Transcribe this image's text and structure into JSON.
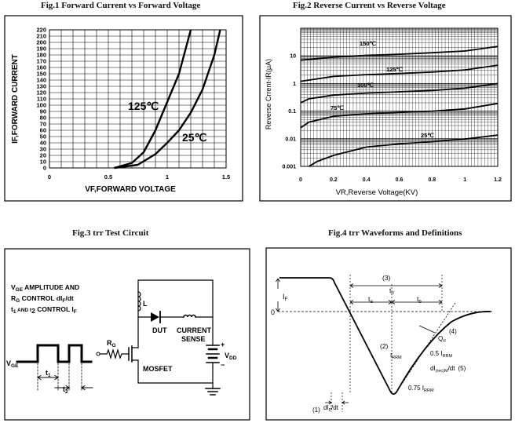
{
  "titles": {
    "fig1": "Fig.1  Forward Current vs Forward Voltage",
    "fig2": "Fig.2  Reverse Current vs Reverse Voltage",
    "fig3": "Fig.3  trr Test Circuit",
    "fig4": "Fig.4 trr Waveforms and Definitions"
  },
  "chart_data": [
    {
      "type": "line",
      "title": "Fig.1  Forward Current vs Forward Voltage",
      "xlabel": "VF,FORWARD VOLTAGE",
      "ylabel": "IF,FORWARD CURRENT",
      "xlim": [
        0,
        1.5
      ],
      "ylim": [
        0,
        220
      ],
      "xticks": [
        "0",
        "0.5",
        "1",
        "1.5"
      ],
      "yticks": [
        "0",
        "10",
        "20",
        "30",
        "40",
        "50",
        "60",
        "70",
        "80",
        "90",
        "100",
        "110",
        "120",
        "130",
        "140",
        "150",
        "160",
        "170",
        "180",
        "190",
        "200",
        "210",
        "220"
      ],
      "series": [
        {
          "name": "125℃",
          "x": [
            0.55,
            0.7,
            0.8,
            0.9,
            1.0,
            1.1,
            1.2
          ],
          "y": [
            0,
            8,
            25,
            60,
            105,
            150,
            220
          ]
        },
        {
          "name": "25℃",
          "x": [
            0.55,
            0.75,
            0.9,
            1.0,
            1.1,
            1.2,
            1.3,
            1.4,
            1.45
          ],
          "y": [
            0,
            5,
            22,
            40,
            60,
            88,
            125,
            180,
            220
          ]
        }
      ]
    },
    {
      "type": "line",
      "title": "Fig.2  Reverse Current vs Reverse Voltage",
      "xlabel": "VR,Reverse Voltage(KV)",
      "ylabel": "Reverse Crrent-IR(μA)",
      "xlim": [
        0,
        1.2
      ],
      "ylim": [
        0.001,
        100
      ],
      "yscale": "log",
      "xticks": [
        "0",
        "0.2",
        "0.4",
        "0.6",
        "0.8",
        "1",
        "1.2"
      ],
      "yticks": [
        "0.001",
        "0.01",
        "0.1",
        "1",
        "10"
      ],
      "series": [
        {
          "name": "150℃",
          "x": [
            0,
            0.2,
            0.4,
            0.6,
            0.8,
            1.0,
            1.2
          ],
          "y": [
            7,
            9,
            10.5,
            11.5,
            13,
            15,
            22
          ]
        },
        {
          "name": "125℃",
          "x": [
            0,
            0.2,
            0.4,
            0.6,
            0.8,
            1.0,
            1.2
          ],
          "y": [
            1.2,
            1.8,
            2.1,
            2.3,
            2.6,
            3.1,
            4.6
          ]
        },
        {
          "name": "100℃",
          "x": [
            0,
            0.05,
            0.2,
            0.4,
            0.6,
            0.8,
            1.0,
            1.2
          ],
          "y": [
            0.2,
            0.28,
            0.38,
            0.45,
            0.5,
            0.56,
            0.68,
            1.0
          ]
        },
        {
          "name": "75℃",
          "x": [
            0,
            0.05,
            0.2,
            0.4,
            0.6,
            0.8,
            1.0,
            1.2
          ],
          "y": [
            0.025,
            0.04,
            0.065,
            0.08,
            0.09,
            0.1,
            0.12,
            0.19
          ]
        },
        {
          "name": "25℃",
          "x": [
            0.05,
            0.1,
            0.2,
            0.4,
            0.6,
            0.8,
            1.0,
            1.2
          ],
          "y": [
            0.001,
            0.0015,
            0.0025,
            0.005,
            0.0065,
            0.0078,
            0.0098,
            0.0135
          ]
        }
      ]
    }
  ],
  "fig3": {
    "vge_amp_line1": "V",
    "vge_amp_line1_sub": "GE",
    "vge_amp_line1_rest": " AMPLITUDE AND",
    "rg_line_a": "R",
    "rg_line_a_sub": "G",
    "rg_line_a_rest": " CONTROL dI",
    "rg_line_a_sub2": "F",
    "rg_line_a_rest2": "/dt",
    "t_line_a": "t",
    "t_line_a_sub": "1",
    "t_line_a_mid": " AND t",
    "t_line_a_sub2": "2",
    "t_line_a_rest": " CONTROL I",
    "t_line_a_sub3": "F",
    "vge_label": "V",
    "vge_label_sub": "GE",
    "rg_label": "R",
    "rg_label_sub": "G",
    "l_label": "L",
    "dut_label": "DUT",
    "current_label": "CURRENT",
    "sense_label": "SENSE",
    "mosfet_label": "MOSFET",
    "vdd_label": "V",
    "vdd_label_sub": "DD",
    "plus": "+",
    "minus": "−",
    "t1": "t",
    "t1_sub": "1",
    "t2": "t",
    "t2_sub": "2"
  },
  "fig4": {
    "n3": "(3)",
    "trr": "t",
    "trr_sub": "rr",
    "ta": "t",
    "ta_sub": "a",
    "tb": "t",
    "tb_sub": "b",
    "if_label": "I",
    "if_sub": "F",
    "zero": "0",
    "n2": "(2)",
    "irrm": "I",
    "irrm_sub": "RRM",
    "n4": "(4)",
    "qrr": "Q",
    "qrr_sub": "rr",
    "half_irrm": "0.5 I",
    "half_irrm_sub": "RRM",
    "di_rec": "dI",
    "di_rec_sub": "(rec)M",
    "di_rec_rest": "/dt",
    "n5": "(5)",
    "q75": "0.75 I",
    "q75_sub": "RRM",
    "n1": "(1)",
    "dif": "dI",
    "dif_sub": "F",
    "dif_rest": "/dt"
  }
}
